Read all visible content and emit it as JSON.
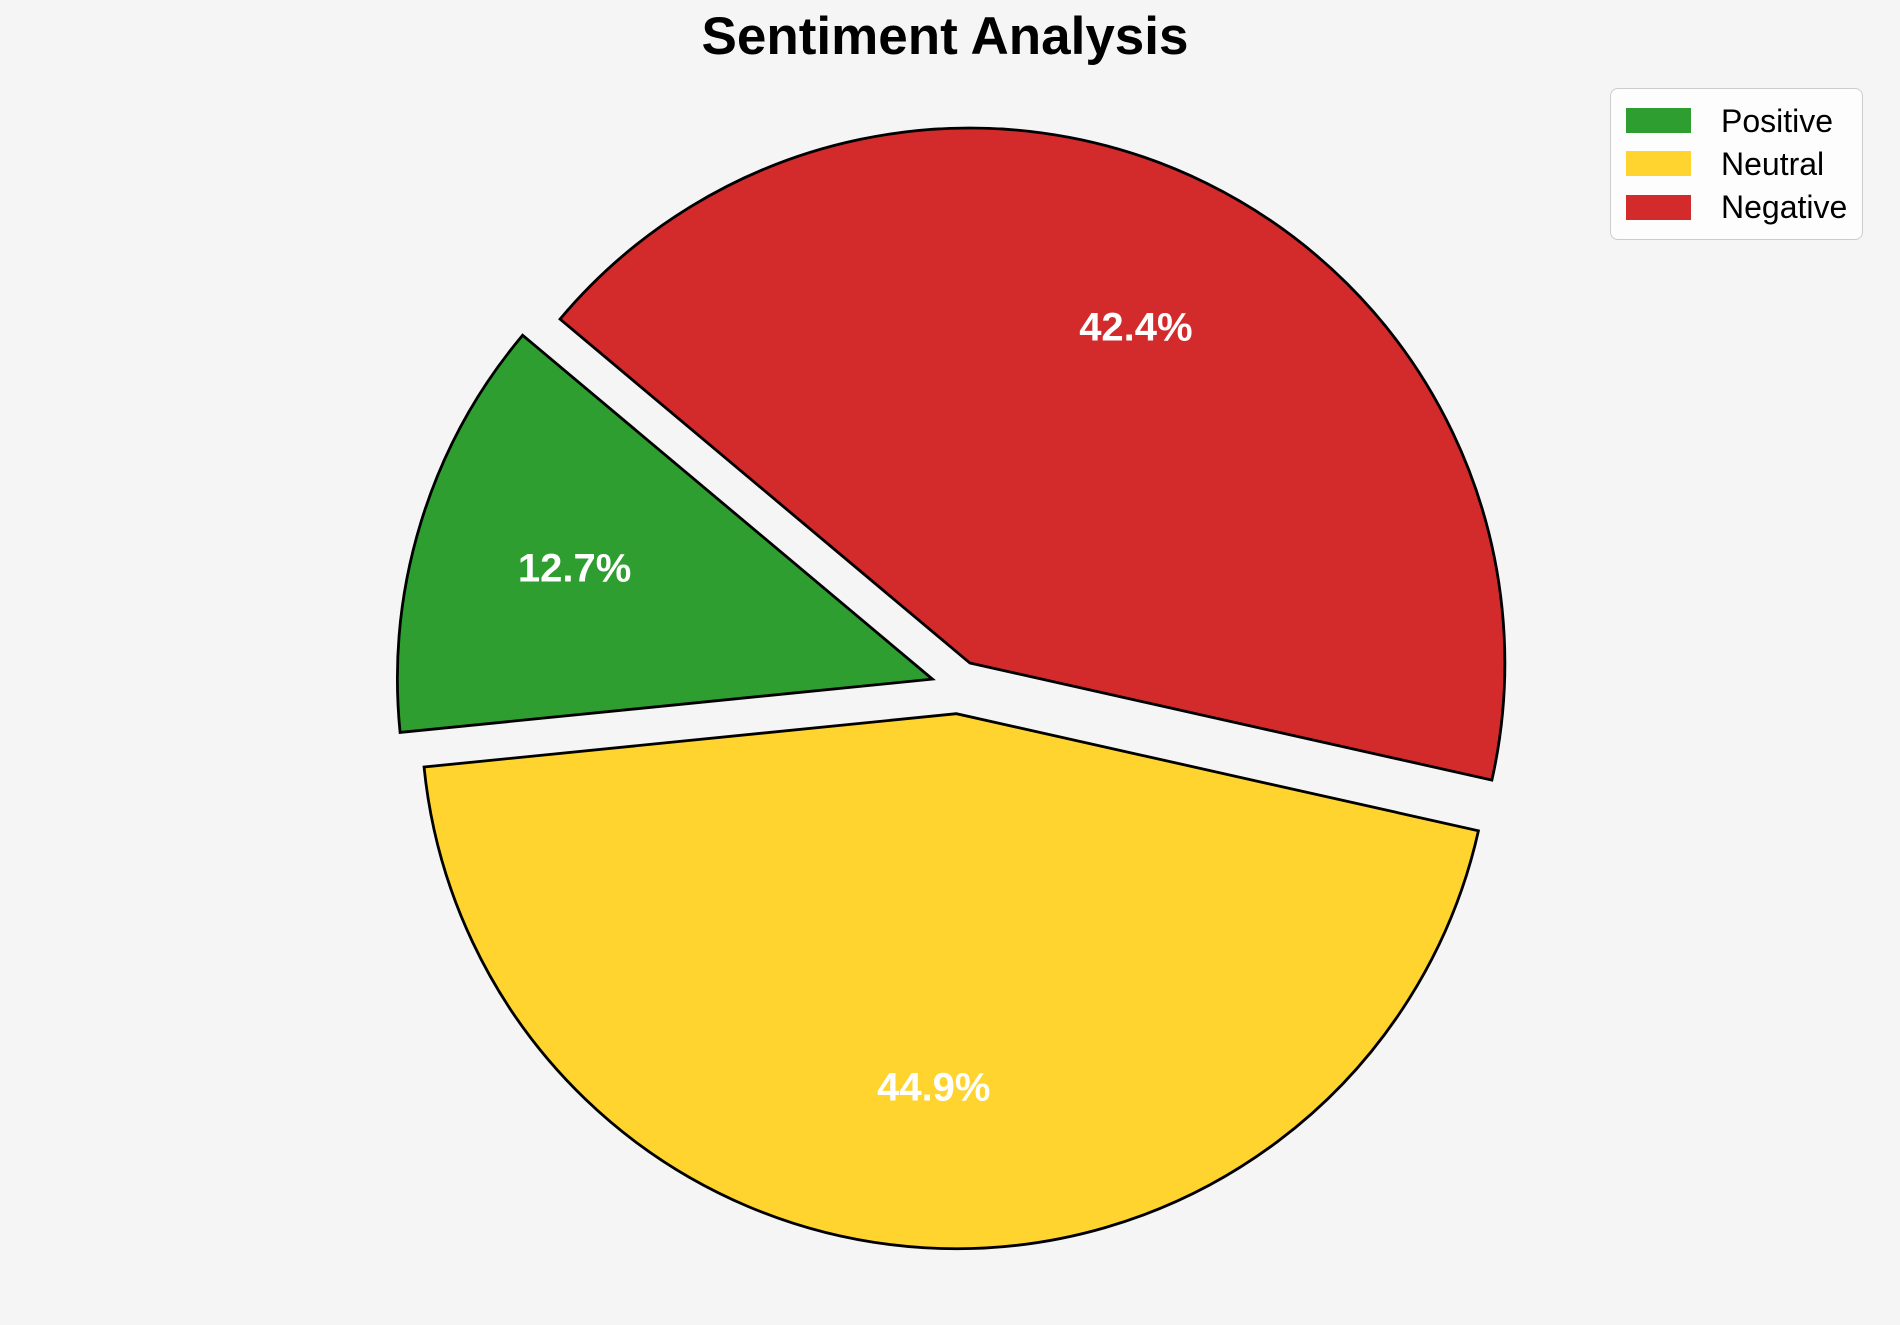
{
  "title": "Sentiment Analysis",
  "colors": {
    "background": "#f5f5f6",
    "legend_background": "#fdfdfd",
    "legend_border": "#cccccc",
    "wedge_edge": "#000000",
    "pct_label": "#ffffff",
    "title_text": "#000000"
  },
  "chart_data": {
    "type": "pie",
    "title": "Sentiment Analysis",
    "categories": [
      "Positive",
      "Neutral",
      "Negative"
    ],
    "values": [
      12.7,
      44.9,
      42.4
    ],
    "pct_labels": [
      "12.7%",
      "44.9%",
      "42.4%"
    ],
    "colors": [
      "#2f9e31",
      "#ffd42e",
      "#d32b2b"
    ],
    "start_angle": 140,
    "direction": "counterclockwise",
    "explode": 0.05,
    "pct_distance": 0.7,
    "legend_position": "upper right"
  },
  "legend": {
    "items": [
      {
        "label": "Positive",
        "color": "#2f9e31"
      },
      {
        "label": "Neutral",
        "color": "#ffd42e"
      },
      {
        "label": "Negative",
        "color": "#d32b2b"
      }
    ]
  }
}
